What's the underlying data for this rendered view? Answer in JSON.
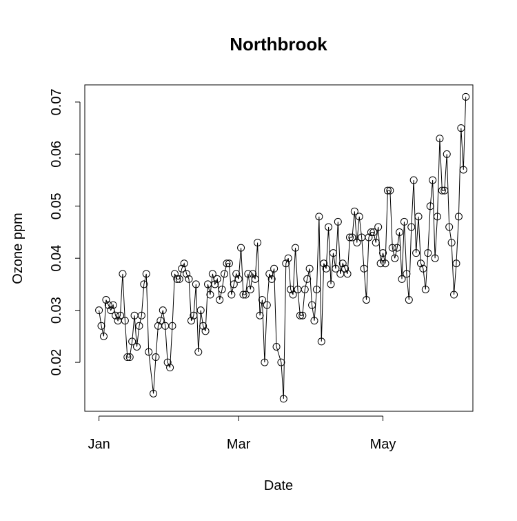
{
  "chart_data": {
    "type": "line",
    "title": "Northbrook",
    "x_label": "Date",
    "y_label": "Ozone ppm",
    "x": [
      0,
      1,
      2,
      3,
      4,
      5,
      6,
      7,
      8,
      9,
      10,
      11,
      12,
      13,
      14,
      15,
      16,
      17,
      18,
      19,
      20,
      21,
      23,
      24,
      25,
      26,
      27,
      28,
      29,
      30,
      31,
      32,
      33,
      34,
      35,
      36,
      37,
      38,
      39,
      40,
      41,
      42,
      43,
      44,
      45,
      46,
      47,
      48,
      49,
      50,
      51,
      52,
      53,
      54,
      55,
      56,
      57,
      58,
      59,
      60,
      61,
      62,
      63,
      64,
      65,
      66,
      67,
      68,
      69,
      70,
      71,
      72,
      73,
      74,
      75,
      77,
      78,
      79,
      80,
      81,
      82,
      83,
      84,
      85,
      86,
      87,
      88,
      89,
      90,
      91,
      92,
      93,
      94,
      95,
      96,
      97,
      98,
      99,
      100,
      101,
      102,
      103,
      104,
      105,
      106,
      107,
      108,
      109,
      110,
      111,
      112,
      113,
      114,
      115,
      116,
      117,
      118,
      119,
      120,
      121,
      122,
      123,
      124,
      125,
      126,
      127,
      128,
      129,
      130,
      131,
      132,
      133,
      134,
      135,
      136,
      137,
      138,
      139,
      140,
      141,
      142,
      143,
      144,
      145,
      146,
      147,
      148,
      149,
      150,
      151,
      152,
      153,
      154,
      155
    ],
    "values": [
      0.03,
      0.027,
      0.025,
      0.032,
      0.031,
      0.03,
      0.031,
      0.029,
      0.028,
      0.029,
      0.037,
      0.028,
      0.021,
      0.021,
      0.024,
      0.029,
      0.023,
      0.027,
      0.029,
      0.035,
      0.037,
      0.022,
      0.014,
      0.021,
      0.027,
      0.028,
      0.03,
      0.027,
      0.02,
      0.019,
      0.027,
      0.037,
      0.036,
      0.036,
      0.038,
      0.039,
      0.037,
      0.036,
      0.028,
      0.029,
      0.035,
      0.022,
      0.03,
      0.027,
      0.026,
      0.035,
      0.033,
      0.037,
      0.035,
      0.036,
      0.032,
      0.034,
      0.037,
      0.039,
      0.039,
      0.033,
      0.035,
      0.037,
      0.036,
      0.042,
      0.033,
      0.033,
      0.037,
      0.034,
      0.037,
      0.036,
      0.043,
      0.029,
      0.032,
      0.02,
      0.031,
      0.037,
      0.036,
      0.038,
      0.023,
      0.02,
      0.013,
      0.039,
      0.04,
      0.034,
      0.033,
      0.042,
      0.034,
      0.029,
      0.029,
      0.034,
      0.036,
      0.038,
      0.031,
      0.028,
      0.034,
      0.048,
      0.024,
      0.039,
      0.038,
      0.046,
      0.035,
      0.041,
      0.038,
      0.047,
      0.037,
      0.039,
      0.038,
      0.037,
      0.044,
      0.044,
      0.049,
      0.043,
      0.048,
      0.044,
      0.038,
      0.032,
      0.044,
      0.045,
      0.045,
      0.043,
      0.046,
      0.039,
      0.041,
      0.039,
      0.053,
      0.053,
      0.042,
      0.04,
      0.042,
      0.045,
      0.036,
      0.047,
      0.037,
      0.032,
      0.046,
      0.055,
      0.041,
      0.048,
      0.039,
      0.038,
      0.034,
      0.041,
      0.05,
      0.055,
      0.04,
      0.048,
      0.063,
      0.053,
      0.053,
      0.06,
      0.046,
      0.043,
      0.033,
      0.039,
      0.048,
      0.065,
      0.057,
      0.071
    ],
    "color": "#000000",
    "xlim": [
      -6,
      158
    ],
    "ylim": [
      0.0106,
      0.0733
    ],
    "xticks": [
      {
        "value": 0,
        "label": "Jan"
      },
      {
        "value": 59,
        "label": "Mar"
      },
      {
        "value": 120,
        "label": "May"
      }
    ],
    "yticks": [
      0.02,
      0.03,
      0.04,
      0.05,
      0.06,
      0.07
    ]
  }
}
